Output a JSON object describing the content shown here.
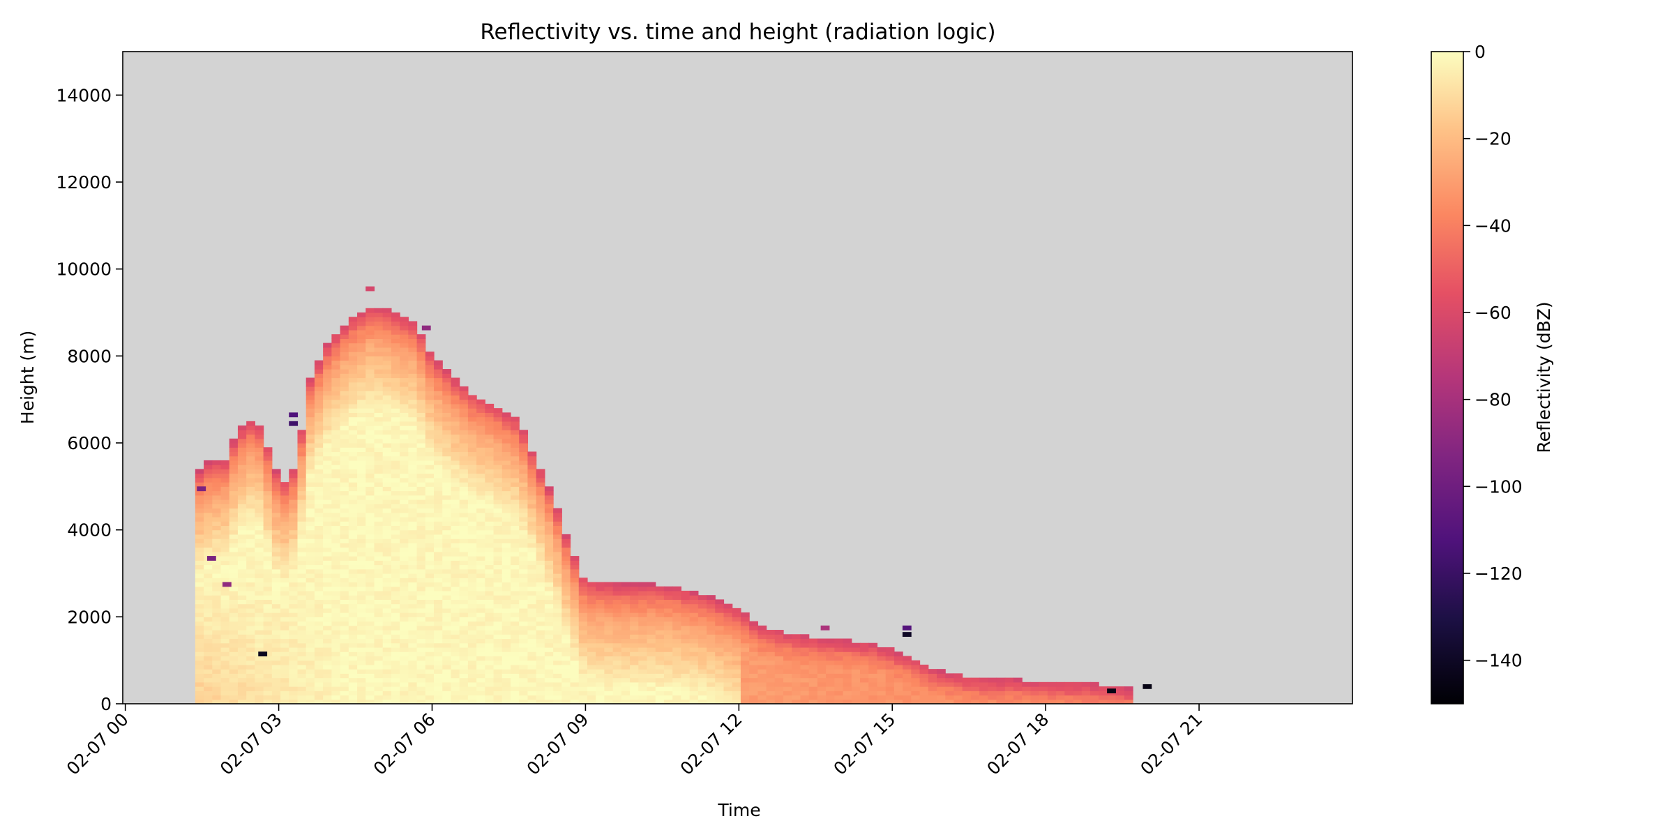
{
  "chart_data": {
    "type": "heatmap",
    "title": "Reflectivity vs. time and height (radiation logic)",
    "xlabel": "Time",
    "ylabel": "Height (m)",
    "x_ticks": [
      "02-07 00",
      "02-07 03",
      "02-07 06",
      "02-07 09",
      "02-07 12",
      "02-07 15",
      "02-07 18",
      "02-07 21"
    ],
    "x_tick_hours": [
      0,
      3,
      6,
      9,
      12,
      15,
      18,
      21
    ],
    "xlim_hours": [
      -0.05,
      24
    ],
    "y_ticks": [
      0,
      2000,
      4000,
      6000,
      8000,
      10000,
      12000,
      14000
    ],
    "y_tick_labels": [
      "0",
      "2000",
      "4000",
      "6000",
      "8000",
      "10000",
      "12000",
      "14000"
    ],
    "ylim": [
      0,
      15000
    ],
    "background_color": "#d3d3d3",
    "colormap": "magma",
    "colorbar": {
      "label": "Reflectivity (dBZ)",
      "range": [
        -150,
        0
      ],
      "ticks": [
        0,
        -20,
        -40,
        -60,
        -80,
        -100,
        -120,
        -140
      ],
      "tick_labels": [
        "0",
        "−20",
        "−40",
        "−60",
        "−80",
        "−100",
        "−120",
        "−140"
      ]
    },
    "grid": false,
    "cloud": {
      "time_step_hours": 0.1667,
      "height_step_m": 100,
      "top_profile": [
        [
          1.3,
          5200
        ],
        [
          1.5,
          5500
        ],
        [
          1.9,
          5600
        ],
        [
          2.1,
          6200
        ],
        [
          2.4,
          6500
        ],
        [
          2.6,
          6300
        ],
        [
          2.8,
          5400
        ],
        [
          3.1,
          5000
        ],
        [
          3.3,
          5700
        ],
        [
          3.5,
          7400
        ],
        [
          3.9,
          8300
        ],
        [
          4.3,
          8800
        ],
        [
          4.7,
          9100
        ],
        [
          5.1,
          9000
        ],
        [
          5.6,
          8700
        ],
        [
          5.9,
          8000
        ],
        [
          6.3,
          7500
        ],
        [
          6.7,
          7100
        ],
        [
          7.2,
          6800
        ],
        [
          7.6,
          6500
        ],
        [
          7.9,
          5700
        ],
        [
          8.3,
          4700
        ],
        [
          8.6,
          3600
        ],
        [
          8.9,
          2800
        ],
        [
          9.5,
          2700
        ],
        [
          10.3,
          2700
        ],
        [
          11.2,
          2500
        ],
        [
          11.8,
          2200
        ],
        [
          12.4,
          1700
        ],
        [
          13.3,
          1500
        ],
        [
          14.1,
          1400
        ],
        [
          14.7,
          1300
        ],
        [
          15.3,
          1000
        ],
        [
          15.9,
          700
        ],
        [
          16.6,
          550
        ],
        [
          17.4,
          500
        ],
        [
          18.2,
          450
        ],
        [
          19.0,
          400
        ],
        [
          19.6,
          300
        ]
      ],
      "specks": [
        {
          "t": 3.2,
          "h": 6600,
          "dbz": -112
        },
        {
          "t": 3.2,
          "h": 6400,
          "dbz": -118
        },
        {
          "t": 4.7,
          "h": 9500,
          "dbz": -62
        },
        {
          "t": 5.8,
          "h": 8600,
          "dbz": -88
        },
        {
          "t": 2.6,
          "h": 1100,
          "dbz": -142
        },
        {
          "t": 13.6,
          "h": 1700,
          "dbz": -78
        },
        {
          "t": 15.2,
          "h": 1700,
          "dbz": -110
        },
        {
          "t": 15.2,
          "h": 1550,
          "dbz": -140
        },
        {
          "t": 19.2,
          "h": 250,
          "dbz": -145
        },
        {
          "t": 19.9,
          "h": 350,
          "dbz": -145
        },
        {
          "t": 1.4,
          "h": 4900,
          "dbz": -95
        },
        {
          "t": 1.6,
          "h": 3300,
          "dbz": -96
        },
        {
          "t": 1.9,
          "h": 2700,
          "dbz": -88
        }
      ]
    }
  }
}
